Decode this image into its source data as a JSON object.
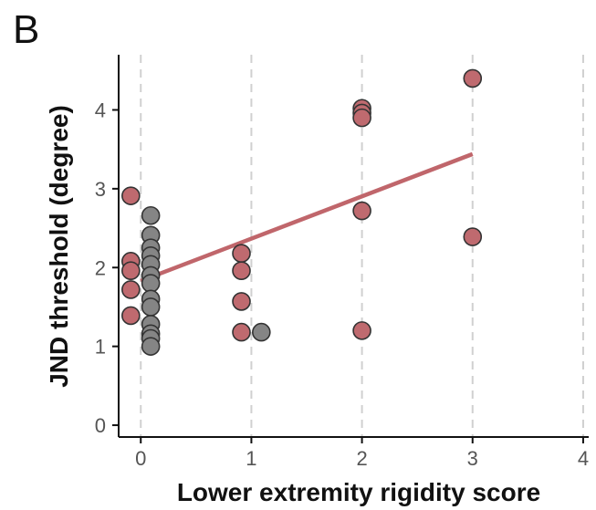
{
  "panel_label": "B",
  "chart_data": {
    "type": "scatter",
    "xlabel": "Lower extremity rigidity score",
    "ylabel": "JND threshold (degree)",
    "xlim": [
      -0.2,
      4.05
    ],
    "ylim": [
      -0.15,
      4.7
    ],
    "xticks": [
      0,
      1,
      2,
      3,
      4
    ],
    "yticks": [
      0,
      1,
      2,
      3,
      4
    ],
    "grid": "vertical dashed lines at x ticks",
    "colors": {
      "red": "#bf6a6f",
      "gray": "#858585",
      "line": "#c0666b",
      "outline": "#333333"
    },
    "points": [
      {
        "x": -0.09,
        "y": 2.91,
        "color": "red"
      },
      {
        "x": -0.09,
        "y": 2.08,
        "color": "red"
      },
      {
        "x": -0.09,
        "y": 1.96,
        "color": "red"
      },
      {
        "x": -0.09,
        "y": 1.72,
        "color": "red"
      },
      {
        "x": -0.09,
        "y": 1.39,
        "color": "red"
      },
      {
        "x": 0.09,
        "y": 2.66,
        "color": "gray"
      },
      {
        "x": 0.09,
        "y": 2.41,
        "color": "gray"
      },
      {
        "x": 0.09,
        "y": 2.25,
        "color": "gray"
      },
      {
        "x": 0.09,
        "y": 2.15,
        "color": "gray"
      },
      {
        "x": 0.09,
        "y": 2.04,
        "color": "gray"
      },
      {
        "x": 0.09,
        "y": 1.9,
        "color": "gray"
      },
      {
        "x": 0.09,
        "y": 1.8,
        "color": "gray"
      },
      {
        "x": 0.09,
        "y": 1.6,
        "color": "gray"
      },
      {
        "x": 0.09,
        "y": 1.5,
        "color": "gray"
      },
      {
        "x": 0.09,
        "y": 1.28,
        "color": "gray"
      },
      {
        "x": 0.09,
        "y": 1.16,
        "color": "gray"
      },
      {
        "x": 0.09,
        "y": 1.1,
        "color": "gray"
      },
      {
        "x": 0.09,
        "y": 1.0,
        "color": "gray"
      },
      {
        "x": 0.91,
        "y": 2.18,
        "color": "red"
      },
      {
        "x": 0.91,
        "y": 1.96,
        "color": "red"
      },
      {
        "x": 0.91,
        "y": 1.57,
        "color": "red"
      },
      {
        "x": 0.91,
        "y": 1.18,
        "color": "red"
      },
      {
        "x": 1.09,
        "y": 1.18,
        "color": "gray"
      },
      {
        "x": 2.0,
        "y": 4.02,
        "color": "red"
      },
      {
        "x": 2.0,
        "y": 3.96,
        "color": "red"
      },
      {
        "x": 2.0,
        "y": 3.9,
        "color": "red"
      },
      {
        "x": 2.0,
        "y": 2.72,
        "color": "red"
      },
      {
        "x": 2.0,
        "y": 1.2,
        "color": "red"
      },
      {
        "x": 3.0,
        "y": 4.4,
        "color": "red"
      },
      {
        "x": 3.0,
        "y": 2.39,
        "color": "red"
      }
    ],
    "regression_line": {
      "x": [
        0,
        3
      ],
      "y": [
        1.83,
        3.44
      ]
    }
  }
}
